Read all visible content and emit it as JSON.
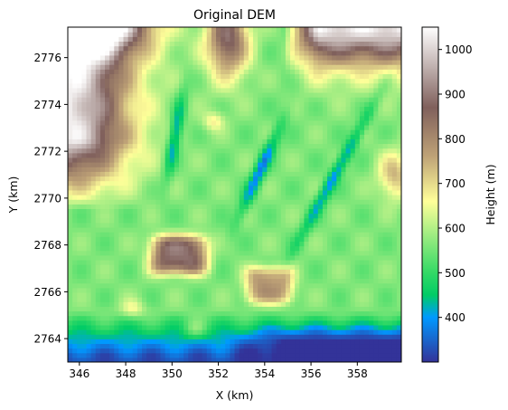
{
  "chart_data": {
    "type": "heatmap",
    "title": "Original DEM",
    "xlabel": "X (km)",
    "ylabel": "Y (km)",
    "xlim": [
      345.5,
      359.9
    ],
    "ylim": [
      2763.0,
      2777.3
    ],
    "x_ticks": [
      346,
      348,
      350,
      352,
      354,
      356,
      358
    ],
    "y_ticks": [
      2764,
      2766,
      2768,
      2770,
      2772,
      2774,
      2776
    ],
    "colorbar": {
      "label": "Height (m)",
      "range": [
        300,
        1050
      ],
      "ticks": [
        400,
        500,
        600,
        700,
        800,
        900,
        1000
      ],
      "colormap": "terrain",
      "stops": [
        {
          "v": 300,
          "color": "#333399"
        },
        {
          "v": 350,
          "color": "#1a66cc"
        },
        {
          "v": 400,
          "color": "#0099ff"
        },
        {
          "v": 450,
          "color": "#00cc66"
        },
        {
          "v": 500,
          "color": "#33d966"
        },
        {
          "v": 580,
          "color": "#99eb80"
        },
        {
          "v": 660,
          "color": "#ffff99"
        },
        {
          "v": 760,
          "color": "#bfa377"
        },
        {
          "v": 870,
          "color": "#80605c"
        },
        {
          "v": 960,
          "color": "#bfb0ae"
        },
        {
          "v": 1050,
          "color": "#ffffff"
        }
      ]
    },
    "features": [
      {
        "kind": "ridge",
        "x": [
          345.5,
          349.0
        ],
        "y": [
          2770.5,
          2777.3
        ],
        "height": 1000
      },
      {
        "kind": "ridge",
        "x": [
          351.3,
          353.5
        ],
        "y": [
          2774.0,
          2777.3
        ],
        "height": 880
      },
      {
        "kind": "ridge",
        "x": [
          355.5,
          359.9
        ],
        "y": [
          2774.0,
          2777.3
        ],
        "height": 1000
      },
      {
        "kind": "hill",
        "x": 350.3,
        "y": 2767.6,
        "height": 860
      },
      {
        "kind": "hill",
        "x": 354.2,
        "y": 2766.3,
        "height": 760
      },
      {
        "kind": "hill",
        "x": 359.3,
        "y": 2770.8,
        "height": 740
      },
      {
        "kind": "hill",
        "x": 351.8,
        "y": 2773.3,
        "height": 680
      },
      {
        "kind": "lowland",
        "y": [
          2763.0,
          2765.0
        ],
        "height": 330
      },
      {
        "kind": "channel",
        "x": [
          349.5,
          350.6
        ],
        "y": [
          2771.0,
          2774.5
        ],
        "height": 420
      },
      {
        "kind": "channel",
        "x": [
          352.8,
          354.8
        ],
        "y": [
          2769.3,
          2773.2
        ],
        "height": 410
      },
      {
        "kind": "channel",
        "x": [
          356.0,
          359.5
        ],
        "y": [
          2768.0,
          2774.0
        ],
        "height": 420
      }
    ]
  }
}
